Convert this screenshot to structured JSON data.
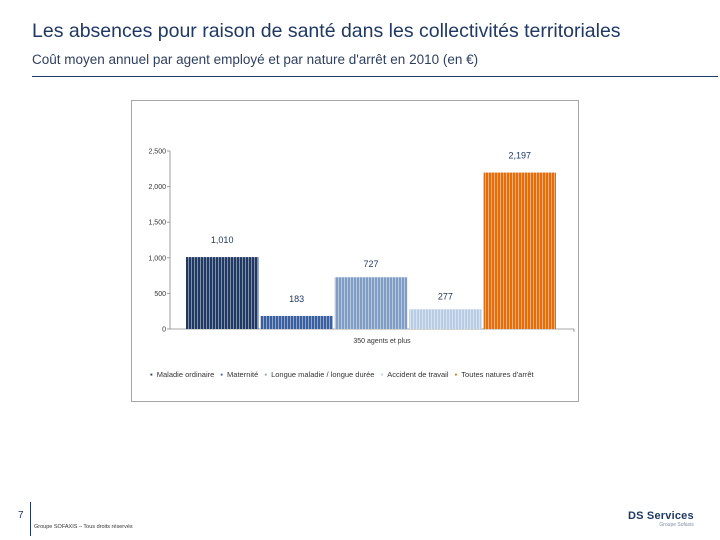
{
  "header": {
    "title": "Les absences pour raison de santé dans les collectivités territoriales",
    "subtitle": "Coût moyen annuel par agent employé et par nature d'arrêt en 2010 (en €)"
  },
  "chart_data": {
    "type": "bar",
    "categories": [
      "350 agents et plus"
    ],
    "xlabel": "350 agents et plus",
    "ylim": [
      0,
      2500
    ],
    "yticks": [
      "0",
      "500",
      "1,000",
      "1,500",
      "2,000",
      "2,500"
    ],
    "ytick_values": [
      0,
      500,
      1000,
      1500,
      2000,
      2500
    ],
    "series": [
      {
        "name": "Maladie ordinaire",
        "values": [
          1010
        ],
        "label": "1,010",
        "color": "#1f3864"
      },
      {
        "name": "Maternité",
        "values": [
          183
        ],
        "label": "183",
        "color": "#3a5f9e"
      },
      {
        "name": "Longue maladie / longue durée",
        "values": [
          727
        ],
        "label": "727",
        "color": "#7f9cc4"
      },
      {
        "name": "Accident de travail",
        "values": [
          277
        ],
        "label": "277",
        "color": "#b8cce4"
      },
      {
        "name": "Toutes natures d'arrêt",
        "values": [
          2197
        ],
        "label": "2,197",
        "color": "#e46c0a"
      }
    ],
    "legend_position": "bottom",
    "grid": false
  },
  "footer": {
    "page_number": "7",
    "copyright": "Groupe SOFAXIS – Tous droits réservés",
    "logo_text": "DS Services",
    "logo_sub": "Groupe Sofaxis"
  }
}
